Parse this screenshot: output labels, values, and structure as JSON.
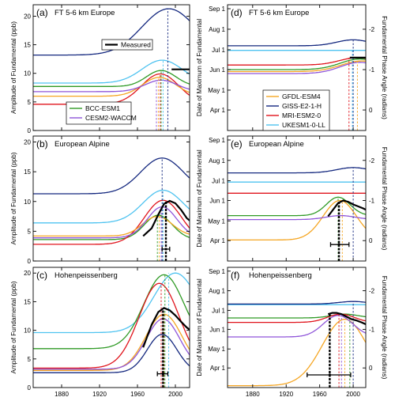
{
  "colors": {
    "BCC-ESM1": "#2f9a25",
    "CESM2-WACCM": "#8f55d9",
    "GFDL-ESM4": "#f5a623",
    "GISS-E2-1-H": "#14287f",
    "MRI-ESM2-0": "#e0141c",
    "UKESM1-0-LL": "#4fc3f0",
    "Measured": "#000000"
  },
  "chart_data": [
    {
      "panel": "a",
      "label": "(a)",
      "title": "FT 5-6 km Europe",
      "type": "line",
      "ylabel": "Amplitude of Fundamental (ppb)",
      "xlim": [
        1850,
        2015
      ],
      "ylim": [
        0,
        22
      ],
      "xticks": [
        "1880",
        "1920",
        "1960",
        "2000"
      ],
      "yticks": [
        "0",
        "5",
        "10",
        "15",
        "20"
      ],
      "legend": [
        {
          "name": "Measured",
          "series": "Measured"
        },
        {
          "name": "BCC-ESM1",
          "series": "BCC-ESM1"
        },
        {
          "name": "CESM2-WACCM",
          "series": "CESM2-WACCM"
        }
      ],
      "series": [
        {
          "model": "GISS-E2-1-H",
          "base": 13.2,
          "peak": 21.3,
          "peak_year": 1993,
          "width": 40
        },
        {
          "model": "UKESM1-0-LL",
          "base": 8.3,
          "peak": 12.3,
          "peak_year": 1986,
          "width": 30
        },
        {
          "model": "BCC-ESM1",
          "base": 7.7,
          "peak": 10.5,
          "peak_year": 1985,
          "width": 22
        },
        {
          "model": "MRI-ESM2-0",
          "base": 4.6,
          "peak": 9.9,
          "peak_year": 1984,
          "width": 28
        },
        {
          "model": "GFDL-ESM4",
          "base": 6.0,
          "peak": 9.3,
          "peak_year": 1983,
          "width": 25
        },
        {
          "model": "CESM2-WACCM",
          "base": 6.8,
          "peak": 8.8,
          "peak_year": 1985,
          "width": 24
        }
      ],
      "measured": {
        "x": [
          1996,
          2015
        ],
        "y": [
          10.7,
          10.7
        ]
      },
      "vlines": [
        {
          "model": "GISS-E2-1-H",
          "year": 1992
        },
        {
          "model": "UKESM1-0-LL",
          "year": 1987
        },
        {
          "model": "MRI-ESM2-0",
          "year": 1984
        },
        {
          "model": "GFDL-ESM4",
          "year": 1982
        },
        {
          "model": "CESM2-WACCM",
          "year": 1980
        },
        {
          "model": "BCC-ESM1",
          "year": 1985
        }
      ]
    },
    {
      "panel": "b",
      "label": "(b)",
      "title": "European Alpine",
      "type": "line",
      "ylabel": "Amplitude of Fundamental (ppb)",
      "xlim": [
        1850,
        2015
      ],
      "ylim": [
        0,
        21
      ],
      "xticks": [
        "1880",
        "1920",
        "1960",
        "2000"
      ],
      "yticks": [
        "0",
        "5",
        "10",
        "15",
        "20"
      ],
      "series": [
        {
          "model": "GISS-E2-1-H",
          "base": 11.3,
          "peak": 17.3,
          "peak_year": 1986,
          "width": 32
        },
        {
          "model": "UKESM1-0-LL",
          "base": 6.4,
          "peak": 11.9,
          "peak_year": 1987,
          "width": 30
        },
        {
          "model": "MRI-ESM2-0",
          "base": 2.8,
          "peak": 10.2,
          "peak_year": 1987,
          "width": 28
        },
        {
          "model": "CESM2-WACCM",
          "base": 3.9,
          "peak": 9.1,
          "peak_year": 1986,
          "width": 22
        },
        {
          "model": "BCC-ESM1",
          "base": 3.6,
          "peak": 7.7,
          "peak_year": 1982,
          "width": 21
        },
        {
          "model": "GFDL-ESM4",
          "base": 4.2,
          "peak": 7.5,
          "peak_year": 1981,
          "width": 22
        }
      ],
      "measured": {
        "x": [
          1966,
          1975,
          1982,
          1988,
          1994,
          2000,
          2006,
          2012,
          2015
        ],
        "y": [
          4.2,
          5.5,
          7.8,
          9.6,
          10.1,
          9.7,
          8.6,
          7.2,
          6.8
        ]
      },
      "measured_line": {
        "year": 1990,
        "from": 0,
        "to": 10.1
      },
      "errorbar": {
        "center": 1990,
        "low": 1986,
        "high": 1994,
        "y": 2.0
      },
      "vlines": [
        {
          "model": "GISS-E2-1-H",
          "year": 1986
        },
        {
          "model": "UKESM1-0-LL",
          "year": 1987
        },
        {
          "model": "BCC-ESM1",
          "year": 1981
        },
        {
          "model": "GFDL-ESM4",
          "year": 1983
        },
        {
          "model": "CESM2-WACCM",
          "year": 1985
        }
      ]
    },
    {
      "panel": "c",
      "label": "(c)",
      "title": "Hohenpeissenberg",
      "type": "line",
      "ylabel": "Amplitude of Fundamental (ppb)",
      "xlabel": "",
      "xlim": [
        1850,
        2015
      ],
      "ylim": [
        0,
        21
      ],
      "xticks": [
        "1880",
        "1920",
        "1960",
        "2000"
      ],
      "yticks": [
        "0",
        "5",
        "10",
        "15",
        "20"
      ],
      "series": [
        {
          "model": "UKESM1-0-LL",
          "base": 9.6,
          "peak": 20.0,
          "peak_year": 2000,
          "width": 32
        },
        {
          "model": "BCC-ESM1",
          "base": 6.8,
          "peak": 19.7,
          "peak_year": 1988,
          "width": 30
        },
        {
          "model": "MRI-ESM2-0",
          "base": 3.4,
          "peak": 18.2,
          "peak_year": 1983,
          "width": 30
        },
        {
          "model": "GFDL-ESM4",
          "base": 3.0,
          "peak": 12.8,
          "peak_year": 1988,
          "width": 27
        },
        {
          "model": "CESM2-WACCM",
          "base": 3.2,
          "peak": 12.0,
          "peak_year": 1987,
          "width": 25
        },
        {
          "model": "GISS-E2-1-H",
          "base": 2.6,
          "peak": 9.3,
          "peak_year": 1986,
          "width": 22
        }
      ],
      "measured": {
        "x": [
          1966,
          1975,
          1982,
          1988,
          1994,
          2000,
          2006,
          2012,
          2015
        ],
        "y": [
          7.0,
          11.0,
          13.2,
          13.9,
          13.5,
          12.6,
          11.5,
          10.5,
          10.1
        ]
      },
      "measured_line": {
        "year": 1987,
        "from": 0,
        "to": 13.9
      },
      "errorbar": {
        "center": 1987,
        "low": 1981,
        "high": 1992,
        "y": 2.4
      },
      "vlines": [
        {
          "model": "UKESM1-0-LL",
          "year": 1993
        },
        {
          "model": "MRI-ESM2-0",
          "year": 1985
        },
        {
          "model": "GFDL-ESM4",
          "year": 1988
        },
        {
          "model": "BCC-ESM1",
          "year": 1989
        }
      ]
    },
    {
      "panel": "d",
      "label": "(d)",
      "title": "FT 5-6 km Europe",
      "type": "line",
      "ylabel": "Date of Maximum of Fundamental",
      "ylabel2": "Fundamental Phase Angle (radians)",
      "xlim": [
        1850,
        2015
      ],
      "ylim": [
        60,
        250
      ],
      "xticks": [
        "1880",
        "1920",
        "1960",
        "2000"
      ],
      "yticks": [
        "Apr 1",
        "May 1",
        "Jun 1",
        "Jul 1",
        "Aug 1",
        "Sep 1"
      ],
      "ytick_values": [
        91,
        121,
        152,
        182,
        213,
        244
      ],
      "y2ticks": [
        "0",
        "-1",
        "-2"
      ],
      "legend": [
        {
          "name": "GFDL-ESM4",
          "series": "GFDL-ESM4"
        },
        {
          "name": "GISS-E2-1-H",
          "series": "GISS-E2-1-H"
        },
        {
          "name": "MRI-ESM2-0",
          "series": "MRI-ESM2-0"
        },
        {
          "name": "UKESM1-0-LL",
          "series": "UKESM1-0-LL"
        }
      ],
      "series": [
        {
          "model": "GISS-E2-1-H",
          "base": 188,
          "peak": 197,
          "peak_year": 2000,
          "width": 28
        },
        {
          "model": "UKESM1-0-LL",
          "base": 181,
          "peak": 181,
          "peak_year": 1990,
          "width": 30
        },
        {
          "model": "MRI-ESM2-0",
          "base": 159,
          "peak": 170,
          "peak_year": 2005,
          "width": 30
        },
        {
          "model": "GFDL-ESM4",
          "base": 149,
          "peak": 165,
          "peak_year": 2010,
          "width": 35
        },
        {
          "model": "BCC-ESM1",
          "base": 152,
          "peak": 168,
          "peak_year": 2008,
          "width": 33
        },
        {
          "model": "CESM2-WACCM",
          "base": 146,
          "peak": 163,
          "peak_year": 2008,
          "width": 33
        }
      ],
      "measured": {
        "x": [
          1996,
          2015
        ],
        "y": [
          170,
          170
        ]
      },
      "vlines": [
        {
          "model": "GISS-E2-1-H",
          "year": 2000
        },
        {
          "model": "MRI-ESM2-0",
          "year": 1995
        },
        {
          "model": "GFDL-ESM4",
          "year": 2005
        },
        {
          "model": "UKESM1-0-LL",
          "year": 1999
        }
      ]
    },
    {
      "panel": "e",
      "label": "(e)",
      "title": "European Alpine",
      "type": "line",
      "ylabel": "Date of Maximum of Fundamental",
      "ylabel2": "Fundamental Phase Angle (radians)",
      "xlim": [
        1850,
        2015
      ],
      "ylim": [
        60,
        250
      ],
      "xticks": [
        "1880",
        "1920",
        "1960",
        "2000"
      ],
      "yticks": [
        "Apr 1",
        "May 1",
        "Jun 1",
        "Jul 1",
        "Aug 1",
        "Sep 1"
      ],
      "ytick_values": [
        91,
        121,
        152,
        182,
        213,
        244
      ],
      "y2ticks": [
        "0",
        "-1",
        "-2"
      ],
      "series": [
        {
          "model": "GISS-E2-1-H",
          "base": 194,
          "peak": 202,
          "peak_year": 2000,
          "width": 28
        },
        {
          "model": "UKESM1-0-LL",
          "base": 180,
          "peak": 180,
          "peak_year": 1990,
          "width": 30
        },
        {
          "model": "MRI-ESM2-0",
          "base": 163,
          "peak": 163,
          "peak_year": 1990,
          "width": 30
        },
        {
          "model": "BCC-ESM1",
          "base": 129,
          "peak": 157,
          "peak_year": 1982,
          "width": 20
        },
        {
          "model": "CESM2-WACCM",
          "base": 123,
          "peak": 129,
          "peak_year": 1985,
          "width": 25
        },
        {
          "model": "GFDL-ESM4",
          "base": 92,
          "peak": 152,
          "peak_year": 1984,
          "width": 28
        }
      ],
      "measured": {
        "x": [
          1970,
          1976,
          1982,
          1988,
          1994,
          2000,
          2006,
          2012,
          2015
        ],
        "y": [
          128,
          138,
          148,
          152,
          150,
          146,
          143,
          140,
          138
        ]
      },
      "measured_line": {
        "year": 1983,
        "from": 60,
        "to": 150
      },
      "errorbar": {
        "center": 1983,
        "low": 1973,
        "high": 1995,
        "y": 85
      },
      "vlines": [
        {
          "model": "GFDL-ESM4",
          "year": 1987
        },
        {
          "model": "BCC-ESM1",
          "year": 1982
        },
        {
          "model": "GISS-E2-1-H",
          "year": 2000
        }
      ]
    },
    {
      "panel": "f",
      "label": "(f)",
      "title": "Hohenpeissenberg",
      "type": "line",
      "ylabel": "Date of Maximum of Fundamental",
      "ylabel2": "Fundamental Phase Angle (radians)",
      "xlabel": "",
      "xlim": [
        1850,
        2015
      ],
      "ylim": [
        60,
        250
      ],
      "xticks": [
        "1880",
        "1920",
        "1960",
        "2000"
      ],
      "yticks": [
        "Apr 1",
        "May 1",
        "Jun 1",
        "Jul 1",
        "Aug 1",
        "Sep 1"
      ],
      "ytick_values": [
        91,
        121,
        152,
        182,
        213,
        244
      ],
      "y2ticks": [
        "0",
        "-1",
        "-2"
      ],
      "series": [
        {
          "model": "GISS-E2-1-H",
          "base": 192,
          "peak": 196,
          "peak_year": 2000,
          "width": 25
        },
        {
          "model": "UKESM1-0-LL",
          "base": 191,
          "peak": 191,
          "peak_year": 1990,
          "width": 30
        },
        {
          "model": "MRI-ESM2-0",
          "base": 163,
          "peak": 176,
          "peak_year": 1985,
          "width": 23
        },
        {
          "model": "BCC-ESM1",
          "base": 170,
          "peak": 176,
          "peak_year": 1990,
          "width": 23
        },
        {
          "model": "CESM2-WACCM",
          "base": 140,
          "peak": 174,
          "peak_year": 1982,
          "width": 25
        },
        {
          "model": "GFDL-ESM4",
          "base": 63,
          "peak": 168,
          "peak_year": 1990,
          "width": 38
        }
      ],
      "measured": {
        "x": [
          1970,
          1975,
          1980,
          1986,
          1992,
          1998,
          2004,
          2010,
          2015
        ],
        "y": [
          176,
          178,
          178,
          176,
          172,
          168,
          166,
          163,
          160
        ]
      },
      "measured_line": {
        "year": 1972,
        "from": 60,
        "to": 176
      },
      "errorbar": {
        "center": 1972,
        "low": 1945,
        "high": 1997,
        "y": 80
      },
      "vlines": [
        {
          "model": "MRI-ESM2-0",
          "year": 1983
        },
        {
          "model": "GFDL-ESM4",
          "year": 1990
        },
        {
          "model": "BCC-ESM1",
          "year": 1996
        },
        {
          "model": "CESM2-WACCM",
          "year": 1986
        },
        {
          "model": "GISS-E2-1-H",
          "year": 2000
        }
      ]
    }
  ]
}
